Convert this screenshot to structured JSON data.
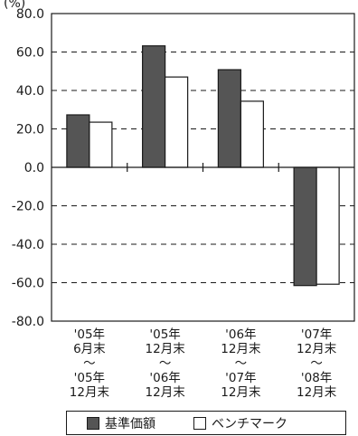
{
  "chart_data": {
    "type": "bar",
    "unit": "(%)",
    "ylim": [
      -80,
      80
    ],
    "yticks": [
      "80.0",
      "60.0",
      "40.0",
      "20.0",
      "0.0",
      "-20.0",
      "-40.0",
      "-60.0",
      "-80.0"
    ],
    "categories": [
      [
        "'05年",
        "6月末",
        "〜",
        "'05年",
        "12月末"
      ],
      [
        "'05年",
        "12月末",
        "〜",
        "'06年",
        "12月末"
      ],
      [
        "'06年",
        "12月末",
        "〜",
        "'07年",
        "12月末"
      ],
      [
        "'07年",
        "12月末",
        "〜",
        "'08年",
        "12月末"
      ]
    ],
    "series": [
      {
        "name": "基準価額",
        "values": [
          27.3,
          63.2,
          50.8,
          -61.5
        ],
        "color": "#555555"
      },
      {
        "name": "ベンチマーク",
        "values": [
          23.5,
          47.0,
          34.4,
          -60.8
        ],
        "color": "#ffffff"
      }
    ],
    "grid": "dashed-horizontal",
    "legend_position": "bottom"
  }
}
